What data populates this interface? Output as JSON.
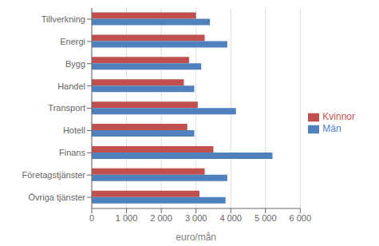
{
  "chart_data": {
    "type": "bar",
    "orientation": "horizontal",
    "categories": [
      "Tillverkning",
      "Energi",
      "Bygg",
      "Handel",
      "Transport",
      "Hotell",
      "Finans",
      "Företagstjänster",
      "Övriga tjänster"
    ],
    "series": [
      {
        "name": "Kvinnor",
        "color": "#C0504D",
        "values": [
          3000,
          3250,
          2800,
          2650,
          3050,
          2750,
          3500,
          3250,
          3100
        ]
      },
      {
        "name": "Män",
        "color": "#4F81BD",
        "values": [
          3400,
          3900,
          3150,
          2950,
          4150,
          2950,
          5200,
          3900,
          3850
        ]
      }
    ],
    "xlabel": "euro/mån",
    "xlim": [
      0,
      6000
    ],
    "xticks": [
      0,
      {
        "value": 1000,
        "label": "1 000"
      },
      {
        "value": 2000,
        "label": "2 000"
      },
      {
        "value": 3000,
        "label": "3 000"
      },
      {
        "value": 4000,
        "label": "4 000"
      },
      {
        "value": 5000,
        "label": "5 000"
      },
      {
        "value": 6000,
        "label": "6 000"
      }
    ],
    "grid": true,
    "legend": "right"
  }
}
